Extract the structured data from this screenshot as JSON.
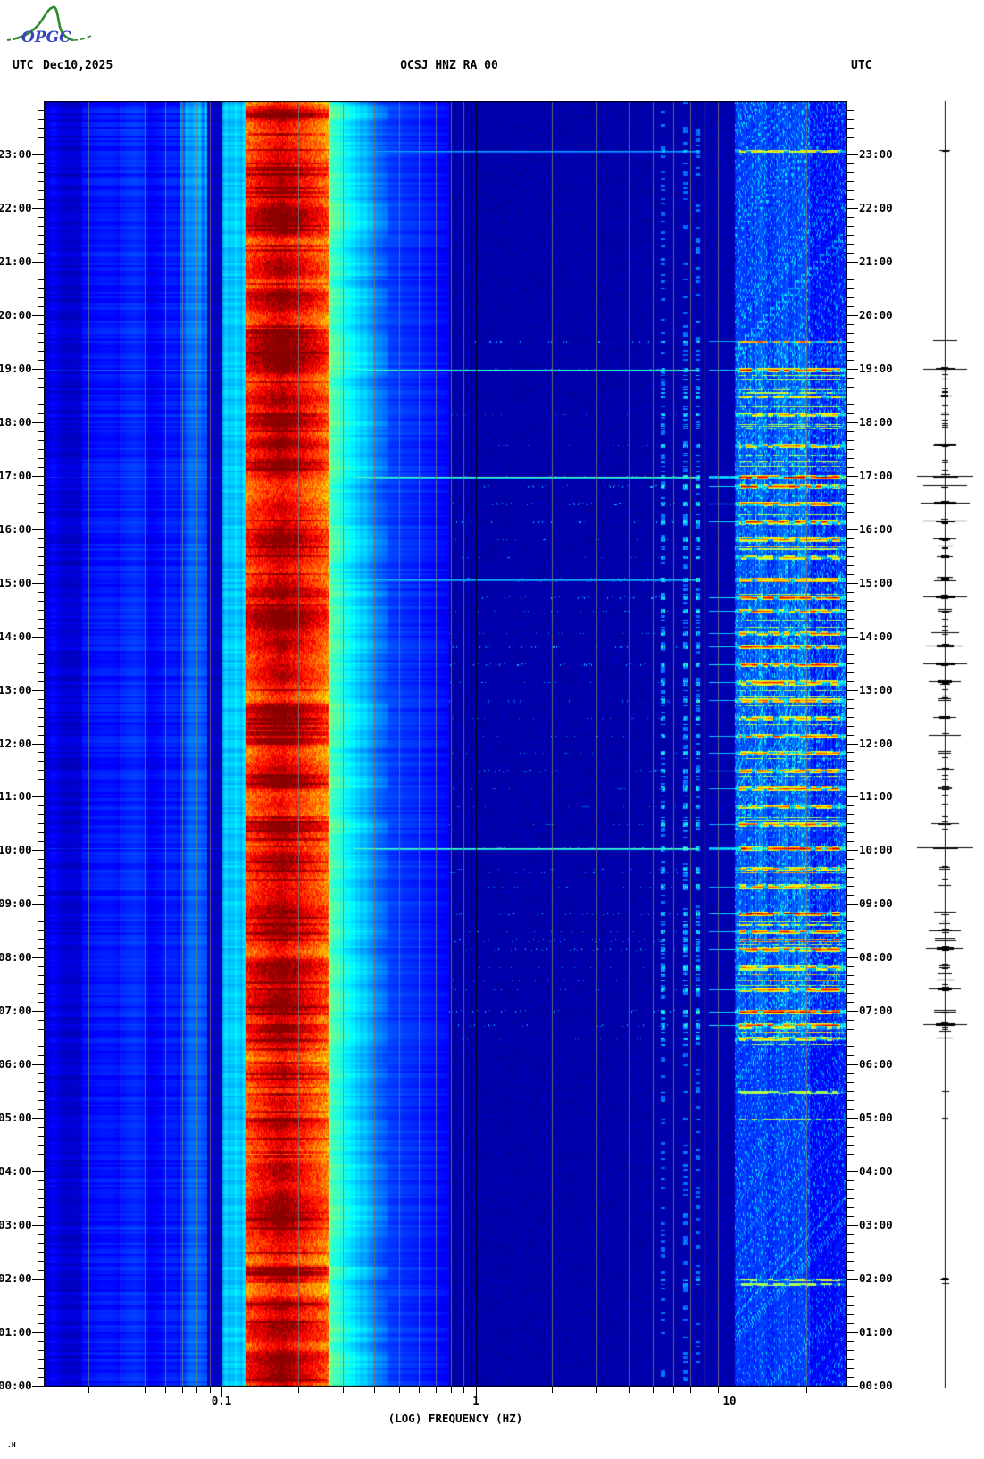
{
  "header": {
    "utc_left": "UTC",
    "date": "Dec10,2025",
    "title": "OCSJ HNZ RA 00",
    "utc_right": "UTC"
  },
  "logo": {
    "text": "OPGC"
  },
  "footer": {
    "corner_mark": ".H"
  },
  "axes": {
    "x_title": "(LOG) FREQUENCY (HZ)",
    "freq_ticks": [
      {
        "label": "0.1",
        "f": 0.1
      },
      {
        "label": "1",
        "f": 1
      },
      {
        "label": "10",
        "f": 10
      }
    ],
    "time_labels": [
      "23:00",
      "22:00",
      "21:00",
      "20:00",
      "19:00",
      "18:00",
      "17:00",
      "16:00",
      "15:00",
      "14:00",
      "13:00",
      "12:00",
      "11:00",
      "10:00",
      "09:00",
      "08:00",
      "07:00",
      "06:00",
      "05:00",
      "04:00",
      "03:00",
      "02:00",
      "01:00",
      "00:00"
    ],
    "minor_tick_minutes": 10
  },
  "chart_data": {
    "type": "heatmap",
    "title": "OCSJ HNZ RA 00",
    "date": "Dec10,2025",
    "timezone": "UTC",
    "x_axis": {
      "label": "(LOG) FREQUENCY (HZ)",
      "scale": "log",
      "min_hz": 0.02,
      "max_hz": 28.9,
      "labeled_ticks": [
        0.1,
        1,
        10
      ]
    },
    "y_axis": {
      "label": "UTC",
      "start": "00:00",
      "end": "24:00",
      "direction": "up",
      "tick_interval_min": 10
    },
    "colormap": "jet",
    "levels": {
      "background_navy": 0.03,
      "left_blue_base": 0.09,
      "cyan_shoulder": 0.26,
      "band_base": 0.4,
      "hf_base": 0.13
    },
    "microseism_band": {
      "range_hz": [
        0.123,
        0.26
      ],
      "peak_hz": 0.17,
      "character": "continuous strong yellow-orange-red band, red streaks"
    },
    "hf_band": {
      "range_hz": [
        10.4,
        28.9
      ],
      "active_hours": [
        6.5,
        19.5
      ],
      "character": "cyan texture with red event streaks"
    },
    "spectral_lines_hz": [
      5.4,
      6.6,
      7.4
    ],
    "events": [
      {
        "t": "23:05",
        "s": 0.5,
        "line": true
      },
      {
        "t": "19:00",
        "s": 0.9,
        "line": true
      },
      {
        "t": "18:30",
        "s": 0.55
      },
      {
        "t": "18:10",
        "s": 0.6
      },
      {
        "t": "17:35",
        "s": 0.7
      },
      {
        "t": "17:00",
        "s": 1.0,
        "line": true
      },
      {
        "t": "16:50",
        "s": 0.9
      },
      {
        "t": "16:30",
        "s": 0.95
      },
      {
        "t": "16:10",
        "s": 0.9
      },
      {
        "t": "15:50",
        "s": 0.7
      },
      {
        "t": "15:30",
        "s": 0.6
      },
      {
        "t": "15:05",
        "s": 0.6,
        "line": true
      },
      {
        "t": "14:45",
        "s": 0.9
      },
      {
        "t": "14:30",
        "s": 0.8
      },
      {
        "t": "14:05",
        "s": 0.75
      },
      {
        "t": "13:50",
        "s": 0.85
      },
      {
        "t": "13:30",
        "s": 0.9
      },
      {
        "t": "13:10",
        "s": 0.8
      },
      {
        "t": "12:50",
        "s": 0.75
      },
      {
        "t": "12:30",
        "s": 0.7
      },
      {
        "t": "12:10",
        "s": 0.8
      },
      {
        "t": "11:50",
        "s": 0.75
      },
      {
        "t": "11:30",
        "s": 0.85
      },
      {
        "t": "11:10",
        "s": 0.8
      },
      {
        "t": "10:50",
        "s": 0.7
      },
      {
        "t": "10:30",
        "s": 0.75
      },
      {
        "t": "10:03",
        "s": 1.0,
        "line": true
      },
      {
        "t": "09:40",
        "s": 0.7
      },
      {
        "t": "09:20",
        "s": 0.75
      },
      {
        "t": "08:50",
        "s": 0.95
      },
      {
        "t": "08:30",
        "s": 0.8
      },
      {
        "t": "08:10",
        "s": 0.85
      },
      {
        "t": "07:50",
        "s": 0.7
      },
      {
        "t": "07:25",
        "s": 0.8
      },
      {
        "t": "07:00",
        "s": 0.95
      },
      {
        "t": "06:45",
        "s": 0.9
      },
      {
        "t": "06:30",
        "s": 0.6
      },
      {
        "t": "05:30",
        "s": 0.35
      },
      {
        "t": "05:00",
        "s": 0.3
      },
      {
        "t": "02:00",
        "s": 0.45
      },
      {
        "t": "01:55",
        "s": 0.35
      }
    ]
  },
  "colors": {
    "logo_green": "#2e8b2e",
    "logo_blue": "#3646b8",
    "grid_gray": "#787878",
    "axis_black": "#000000"
  }
}
